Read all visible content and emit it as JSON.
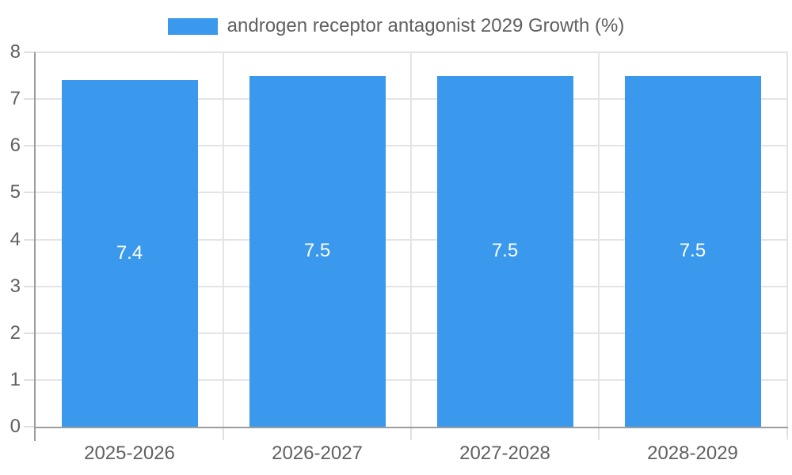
{
  "legend": {
    "label": "androgen receptor antagonist 2029 Growth (%)",
    "position": "top-center"
  },
  "chart_data": {
    "type": "bar",
    "title": "androgen receptor antagonist 2029 Growth (%)",
    "categories": [
      "2025-2026",
      "2026-2027",
      "2027-2028",
      "2028-2029"
    ],
    "values": [
      7.4,
      7.5,
      7.5,
      7.5
    ],
    "bar_value_labels": [
      "7.4",
      "7.5",
      "7.5",
      "7.5"
    ],
    "xlabel": "",
    "ylabel": "",
    "ylim": [
      0,
      8
    ],
    "yticks": [
      0,
      1,
      2,
      3,
      4,
      5,
      6,
      7,
      8
    ],
    "grid": true,
    "legend_position": "top",
    "colors": {
      "bar": "#3a99ec",
      "value_label": "#ffffff",
      "axis_line": "#9c9c9c",
      "gridline": "#e4e4e4",
      "tick": "#e0e0e0",
      "label_text": "#606060"
    }
  }
}
